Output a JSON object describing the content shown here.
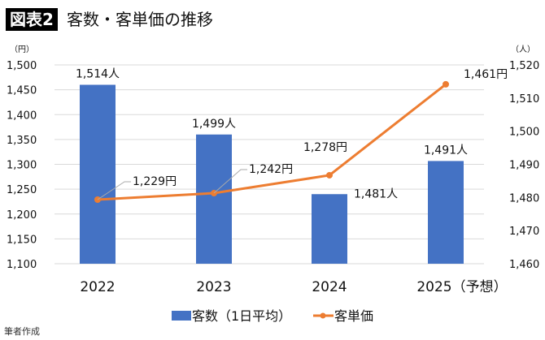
{
  "header": {
    "badge": "図表2",
    "title": "客数・客単価の推移"
  },
  "source": "筆者作成",
  "chart_data": {
    "type": "bar+line",
    "categories": [
      "2022",
      "2023",
      "2024",
      "2025（予想）"
    ],
    "left_axis": {
      "unit": "（円）",
      "ylim": [
        1100,
        1500
      ],
      "ticks": [
        "1,100",
        "1,150",
        "1,200",
        "1,250",
        "1,300",
        "1,350",
        "1,400",
        "1,450",
        "1,500"
      ]
    },
    "right_axis": {
      "unit": "（人）",
      "ylim": [
        1460,
        1520
      ],
      "ticks": [
        "1,460",
        "1,470",
        "1,480",
        "1,490",
        "1,500",
        "1,510",
        "1,520"
      ]
    },
    "grid": true,
    "legend": "bottom",
    "series": [
      {
        "name": "客数（1日平均）",
        "type": "bar",
        "axis": "right",
        "color": "#4472C4",
        "values": [
          1514,
          1499,
          1481,
          1491
        ],
        "labels": [
          "1,514人",
          "1,499人",
          "1,481人",
          "1,491人"
        ]
      },
      {
        "name": "客単価",
        "type": "line",
        "axis": "left",
        "color": "#ED7D31",
        "values": [
          1229,
          1242,
          1278,
          1461
        ],
        "labels": [
          "1,229円",
          "1,242円",
          "1,278円",
          "1,461円"
        ]
      }
    ]
  }
}
